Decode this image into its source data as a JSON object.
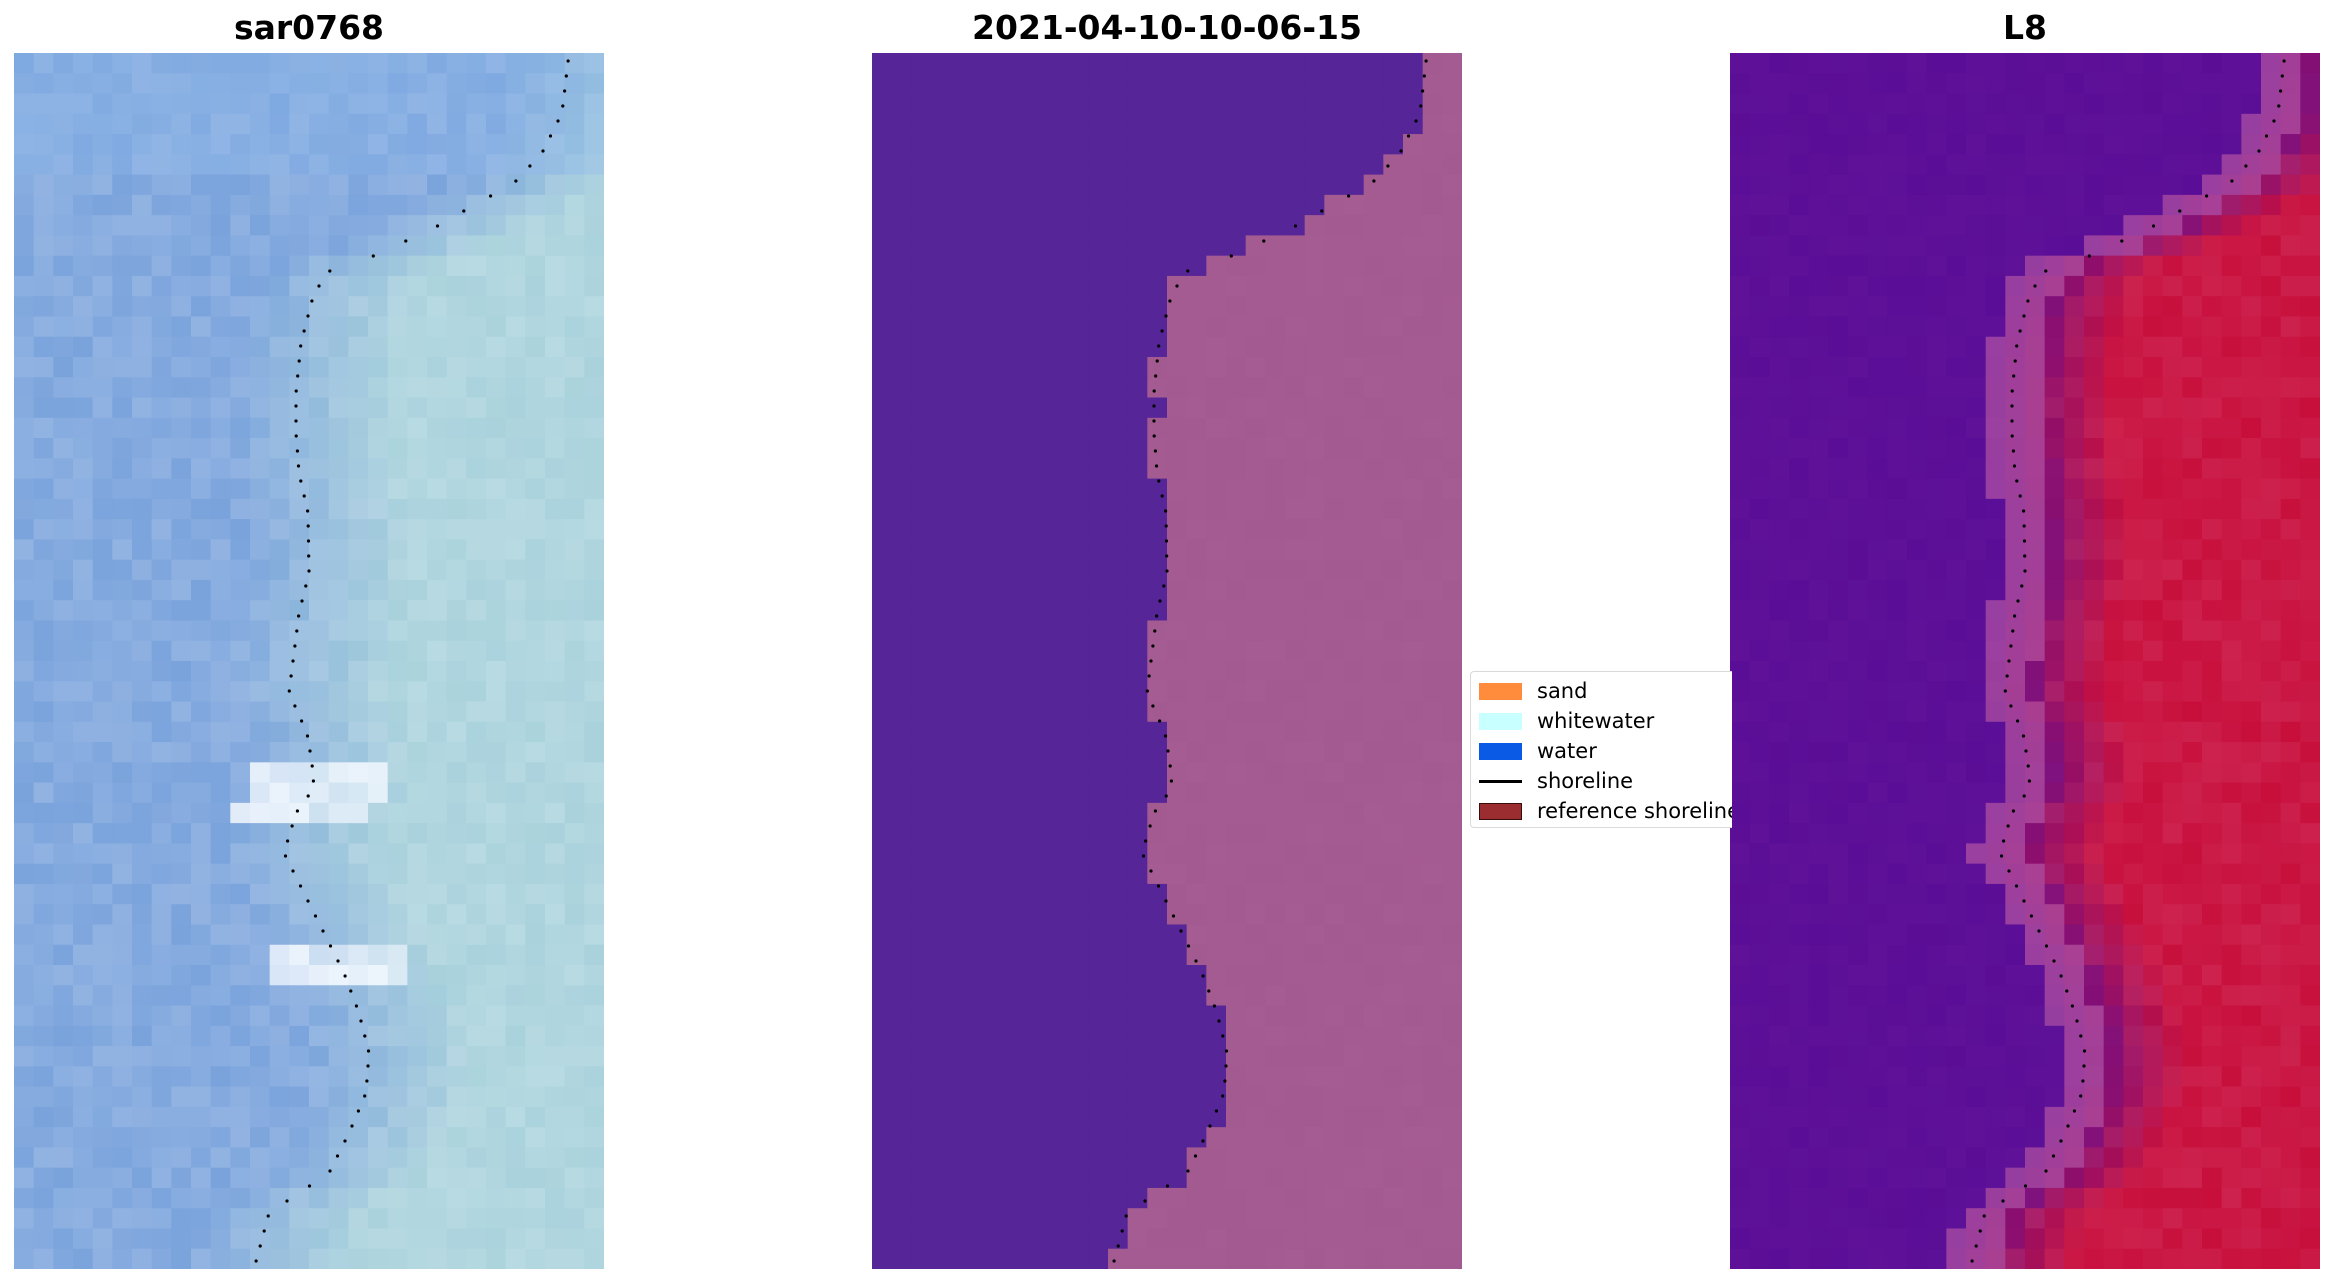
{
  "panels": [
    {
      "id": "sar",
      "title": "sar0768",
      "style": "rgb"
    },
    {
      "id": "classified",
      "title": "2021-04-10-10-06-15",
      "style": "class"
    },
    {
      "id": "index",
      "title": "L8",
      "style": "index"
    }
  ],
  "legend": {
    "items": [
      {
        "label": "sand",
        "kind": "patch",
        "color": "#ff8c3c",
        "icon": "sand-swatch"
      },
      {
        "label": "whitewater",
        "kind": "patch",
        "color": "#c8ffff",
        "icon": "whitewater-swatch"
      },
      {
        "label": "water",
        "kind": "patch",
        "color": "#0a5ae6",
        "icon": "water-swatch"
      },
      {
        "label": "shoreline",
        "kind": "line",
        "color": "#000000",
        "icon": "shoreline-line"
      },
      {
        "label": "reference shoreline",
        "kind": "patch",
        "color": "#9b2d30",
        "icon": "reference-shoreline-swatch"
      }
    ]
  },
  "colors": {
    "sar_water": "#7aa3dc",
    "sar_land": "#a9d2dc",
    "class_water": "#562597",
    "class_land": "#a25a90",
    "index_water": "#5a0d96",
    "index_land": "#c80f3c",
    "shoreline_dots": "#000000"
  }
}
